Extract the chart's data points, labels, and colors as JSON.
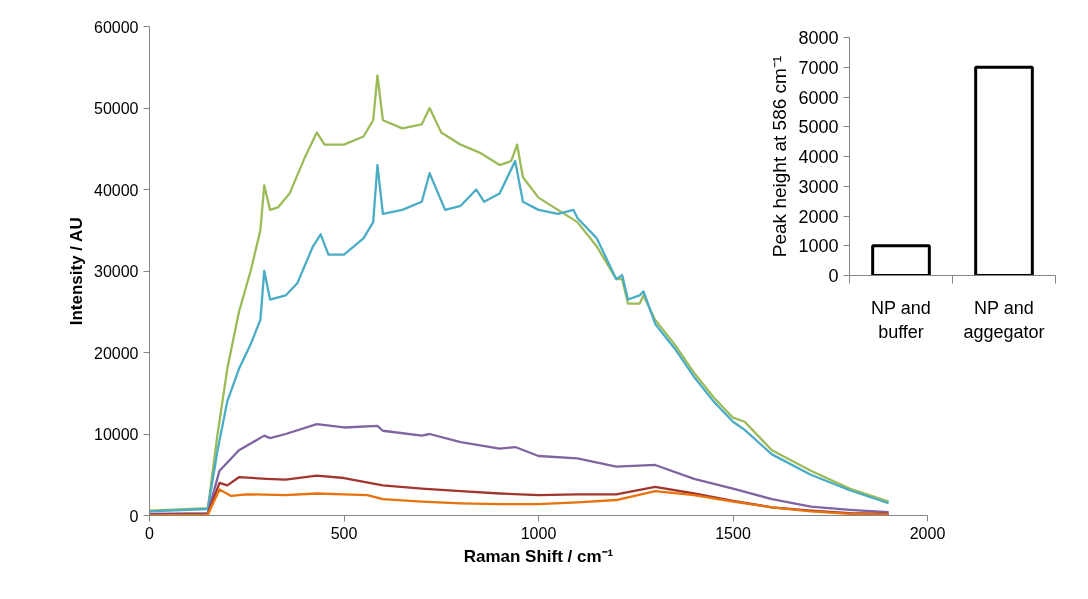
{
  "chart_data": [
    {
      "type": "line",
      "xlabel": "Raman Shift / cm⁻¹",
      "ylabel": "Intensity / AU",
      "xlim": [
        0,
        2000
      ],
      "xticks": [
        0,
        500,
        1000,
        1500,
        2000
      ],
      "ylim": [
        0,
        60000
      ],
      "yticks": [
        0,
        10000,
        20000,
        30000,
        40000,
        50000,
        60000
      ],
      "line_style": "solid",
      "marker": "none",
      "series": [
        {
          "color": "#9bbb59",
          "x": [
            0,
            150,
            175,
            200,
            230,
            260,
            285,
            295,
            310,
            330,
            360,
            400,
            430,
            450,
            500,
            550,
            575,
            586,
            600,
            650,
            700,
            720,
            750,
            800,
            850,
            900,
            930,
            945,
            960,
            1000,
            1050,
            1100,
            1150,
            1200,
            1215,
            1230,
            1260,
            1270,
            1300,
            1350,
            1400,
            1450,
            1500,
            1530,
            1600,
            1700,
            1800,
            1900
          ],
          "values": [
            600,
            900,
            10000,
            18000,
            25000,
            30000,
            35000,
            40500,
            37500,
            37800,
            39500,
            44000,
            47000,
            45500,
            45500,
            46500,
            48500,
            54000,
            48500,
            47500,
            48000,
            50000,
            47000,
            45500,
            44500,
            43000,
            43500,
            45500,
            41500,
            39000,
            37500,
            36000,
            33000,
            29000,
            29000,
            26000,
            26000,
            27000,
            24000,
            21000,
            17500,
            14500,
            12000,
            11500,
            8000,
            5500,
            3300,
            1700
          ]
        },
        {
          "color": "#4bacc6",
          "x": [
            0,
            150,
            175,
            200,
            230,
            260,
            285,
            295,
            310,
            350,
            380,
            420,
            440,
            460,
            500,
            550,
            575,
            586,
            600,
            650,
            700,
            720,
            760,
            800,
            840,
            860,
            900,
            940,
            960,
            1000,
            1050,
            1090,
            1100,
            1150,
            1200,
            1215,
            1230,
            1260,
            1270,
            1300,
            1350,
            1400,
            1450,
            1500,
            1530,
            1600,
            1700,
            1800,
            1900
          ],
          "values": [
            500,
            800,
            8000,
            14000,
            18000,
            21000,
            24000,
            30000,
            26500,
            27000,
            28500,
            33000,
            34500,
            32000,
            32000,
            34000,
            36000,
            43000,
            37000,
            37500,
            38500,
            42000,
            37500,
            38000,
            40000,
            38500,
            39500,
            43500,
            38500,
            37500,
            37000,
            37500,
            36500,
            34000,
            29000,
            29500,
            26500,
            27000,
            27500,
            23500,
            20500,
            17000,
            14000,
            11500,
            10500,
            7500,
            5000,
            3100,
            1500
          ]
        },
        {
          "color": "#8064a2",
          "x": [
            0,
            150,
            180,
            230,
            295,
            310,
            350,
            430,
            500,
            586,
            600,
            700,
            720,
            800,
            900,
            940,
            1000,
            1100,
            1200,
            1300,
            1400,
            1500,
            1600,
            1700,
            1800,
            1900
          ],
          "values": [
            200,
            300,
            5500,
            8000,
            9800,
            9500,
            10000,
            11200,
            10800,
            11000,
            10400,
            9800,
            10000,
            9000,
            8200,
            8400,
            7300,
            7000,
            6000,
            6200,
            4500,
            3300,
            2000,
            1100,
            700,
            400
          ]
        },
        {
          "color": "#a0362f",
          "x": [
            0,
            150,
            180,
            200,
            230,
            300,
            350,
            430,
            500,
            600,
            700,
            800,
            900,
            1000,
            1100,
            1200,
            1300,
            1400,
            1500,
            1600,
            1700,
            1800,
            1900
          ],
          "values": [
            100,
            200,
            4000,
            3700,
            4700,
            4500,
            4400,
            4900,
            4600,
            3700,
            3300,
            3000,
            2700,
            2500,
            2600,
            2600,
            3500,
            2700,
            1800,
            1000,
            600,
            300,
            200
          ]
        },
        {
          "color": "#e8720c",
          "x": [
            0,
            150,
            180,
            210,
            250,
            350,
            430,
            500,
            560,
            600,
            700,
            800,
            900,
            1000,
            1100,
            1200,
            1300,
            1400,
            1500,
            1600,
            1700,
            1800,
            1900
          ],
          "values": [
            0,
            100,
            3200,
            2400,
            2600,
            2500,
            2700,
            2600,
            2500,
            2000,
            1700,
            1500,
            1400,
            1400,
            1600,
            1900,
            3000,
            2500,
            1700,
            1000,
            500,
            200,
            100
          ]
        }
      ]
    },
    {
      "type": "bar",
      "ylabel": "Peak height at 586 cm⁻¹",
      "categories": [
        "NP and\nbuffer",
        "NP and\naggegator"
      ],
      "values": [
        1000,
        7000
      ],
      "color": "#000000",
      "ylim": [
        0,
        8000
      ],
      "yticks": [
        0,
        1000,
        2000,
        3000,
        4000,
        5000,
        6000,
        7000,
        8000
      ]
    }
  ]
}
